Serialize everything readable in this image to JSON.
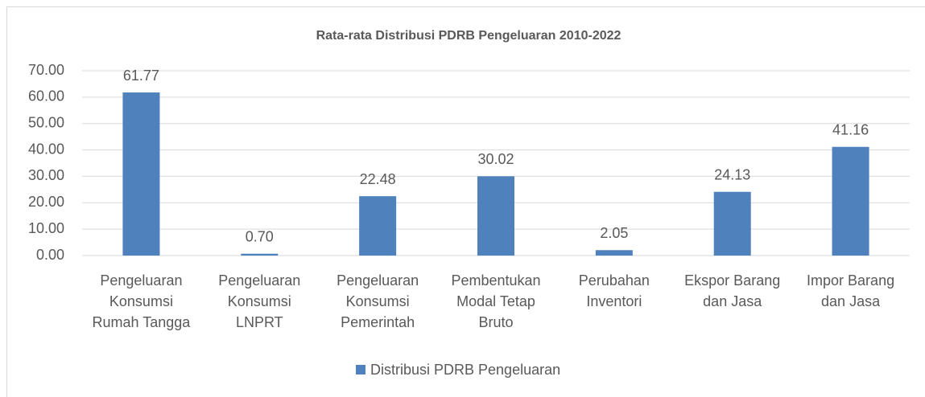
{
  "chart_data": {
    "type": "bar",
    "title": "Rata-rata Distribusi PDRB Pengeluaran 2010-2022",
    "categories": [
      "Pengeluaran Konsumsi Rumah Tangga",
      "Pengeluaran Konsumsi LNPRT",
      "Pengeluaran Konsumsi Pemerintah",
      "Pembentukan Modal Tetap Bruto",
      "Perubahan Inventori",
      "Ekspor Barang dan Jasa",
      "Impor Barang dan Jasa"
    ],
    "series": [
      {
        "name": "Distribusi PDRB Pengeluaran",
        "color": "#4f81bd",
        "values": [
          61.77,
          0.7,
          22.48,
          30.02,
          2.05,
          24.13,
          41.16
        ],
        "value_labels": [
          "61.77",
          "0.70",
          "22.48",
          "30.02",
          "2.05",
          "24.13",
          "41.16"
        ]
      }
    ],
    "ylim": [
      0,
      70
    ],
    "yticks": [
      {
        "value": 0,
        "label": "0.00"
      },
      {
        "value": 10,
        "label": "10.00"
      },
      {
        "value": 20,
        "label": "20.00"
      },
      {
        "value": 30,
        "label": "30.00"
      },
      {
        "value": 40,
        "label": "40.00"
      },
      {
        "value": 50,
        "label": "50.00"
      },
      {
        "value": 60,
        "label": "60.00"
      },
      {
        "value": 70,
        "label": "70.00"
      }
    ],
    "grid": true,
    "legend": "bottom"
  }
}
